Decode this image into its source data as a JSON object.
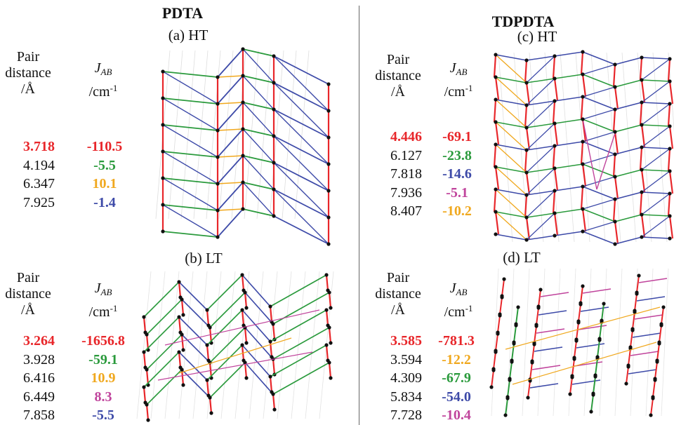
{
  "colors": {
    "red": "#e8262a",
    "green": "#2a9a3c",
    "orange": "#f0a81e",
    "blue": "#3d4aa8",
    "magenta": "#c0449c",
    "black": "#111111"
  },
  "headers": {
    "pair": "Pair",
    "distance": "distance",
    "unit_dist": "/Å",
    "j": "J",
    "j_sub": "AB",
    "unit_j": "/cm",
    "unit_j_sup": "-1"
  },
  "left": {
    "title": "PDTA",
    "panels": [
      {
        "label": "(a) HT",
        "rows": [
          {
            "distance": "3.718",
            "j": "-110.5",
            "color": "red"
          },
          {
            "distance": "4.194",
            "j": "-5.5",
            "color": "green"
          },
          {
            "distance": "6.347",
            "j": "10.1",
            "color": "orange"
          },
          {
            "distance": "7.925",
            "j": "-1.4",
            "color": "blue"
          }
        ]
      },
      {
        "label": "(b) LT",
        "rows": [
          {
            "distance": "3.264",
            "j": "-1656.8",
            "color": "red"
          },
          {
            "distance": "3.928",
            "j": "-59.1",
            "color": "green"
          },
          {
            "distance": "6.416",
            "j": "10.9",
            "color": "orange"
          },
          {
            "distance": "6.449",
            "j": "8.3",
            "color": "magenta"
          },
          {
            "distance": "7.858",
            "j": "-5.5",
            "color": "blue"
          }
        ]
      }
    ]
  },
  "right": {
    "title": "TDPDTA",
    "panels": [
      {
        "label": "(c) HT",
        "rows": [
          {
            "distance": "4.446",
            "j": "-69.1",
            "color": "red"
          },
          {
            "distance": "6.127",
            "j": "-23.8",
            "color": "green"
          },
          {
            "distance": "7.818",
            "j": "-14.6",
            "color": "blue"
          },
          {
            "distance": "7.936",
            "j": "-5.1",
            "color": "magenta"
          },
          {
            "distance": "8.407",
            "j": "-10.2",
            "color": "orange"
          }
        ]
      },
      {
        "label": "(d) LT",
        "rows": [
          {
            "distance": "3.585",
            "j": "-781.3",
            "color": "red"
          },
          {
            "distance": "3.594",
            "j": "-12.2",
            "color": "orange"
          },
          {
            "distance": "4.309",
            "j": "-67.9",
            "color": "green"
          },
          {
            "distance": "5.834",
            "j": "-54.0",
            "color": "blue"
          },
          {
            "distance": "7.728",
            "j": "-10.4",
            "color": "magenta"
          }
        ]
      }
    ]
  }
}
